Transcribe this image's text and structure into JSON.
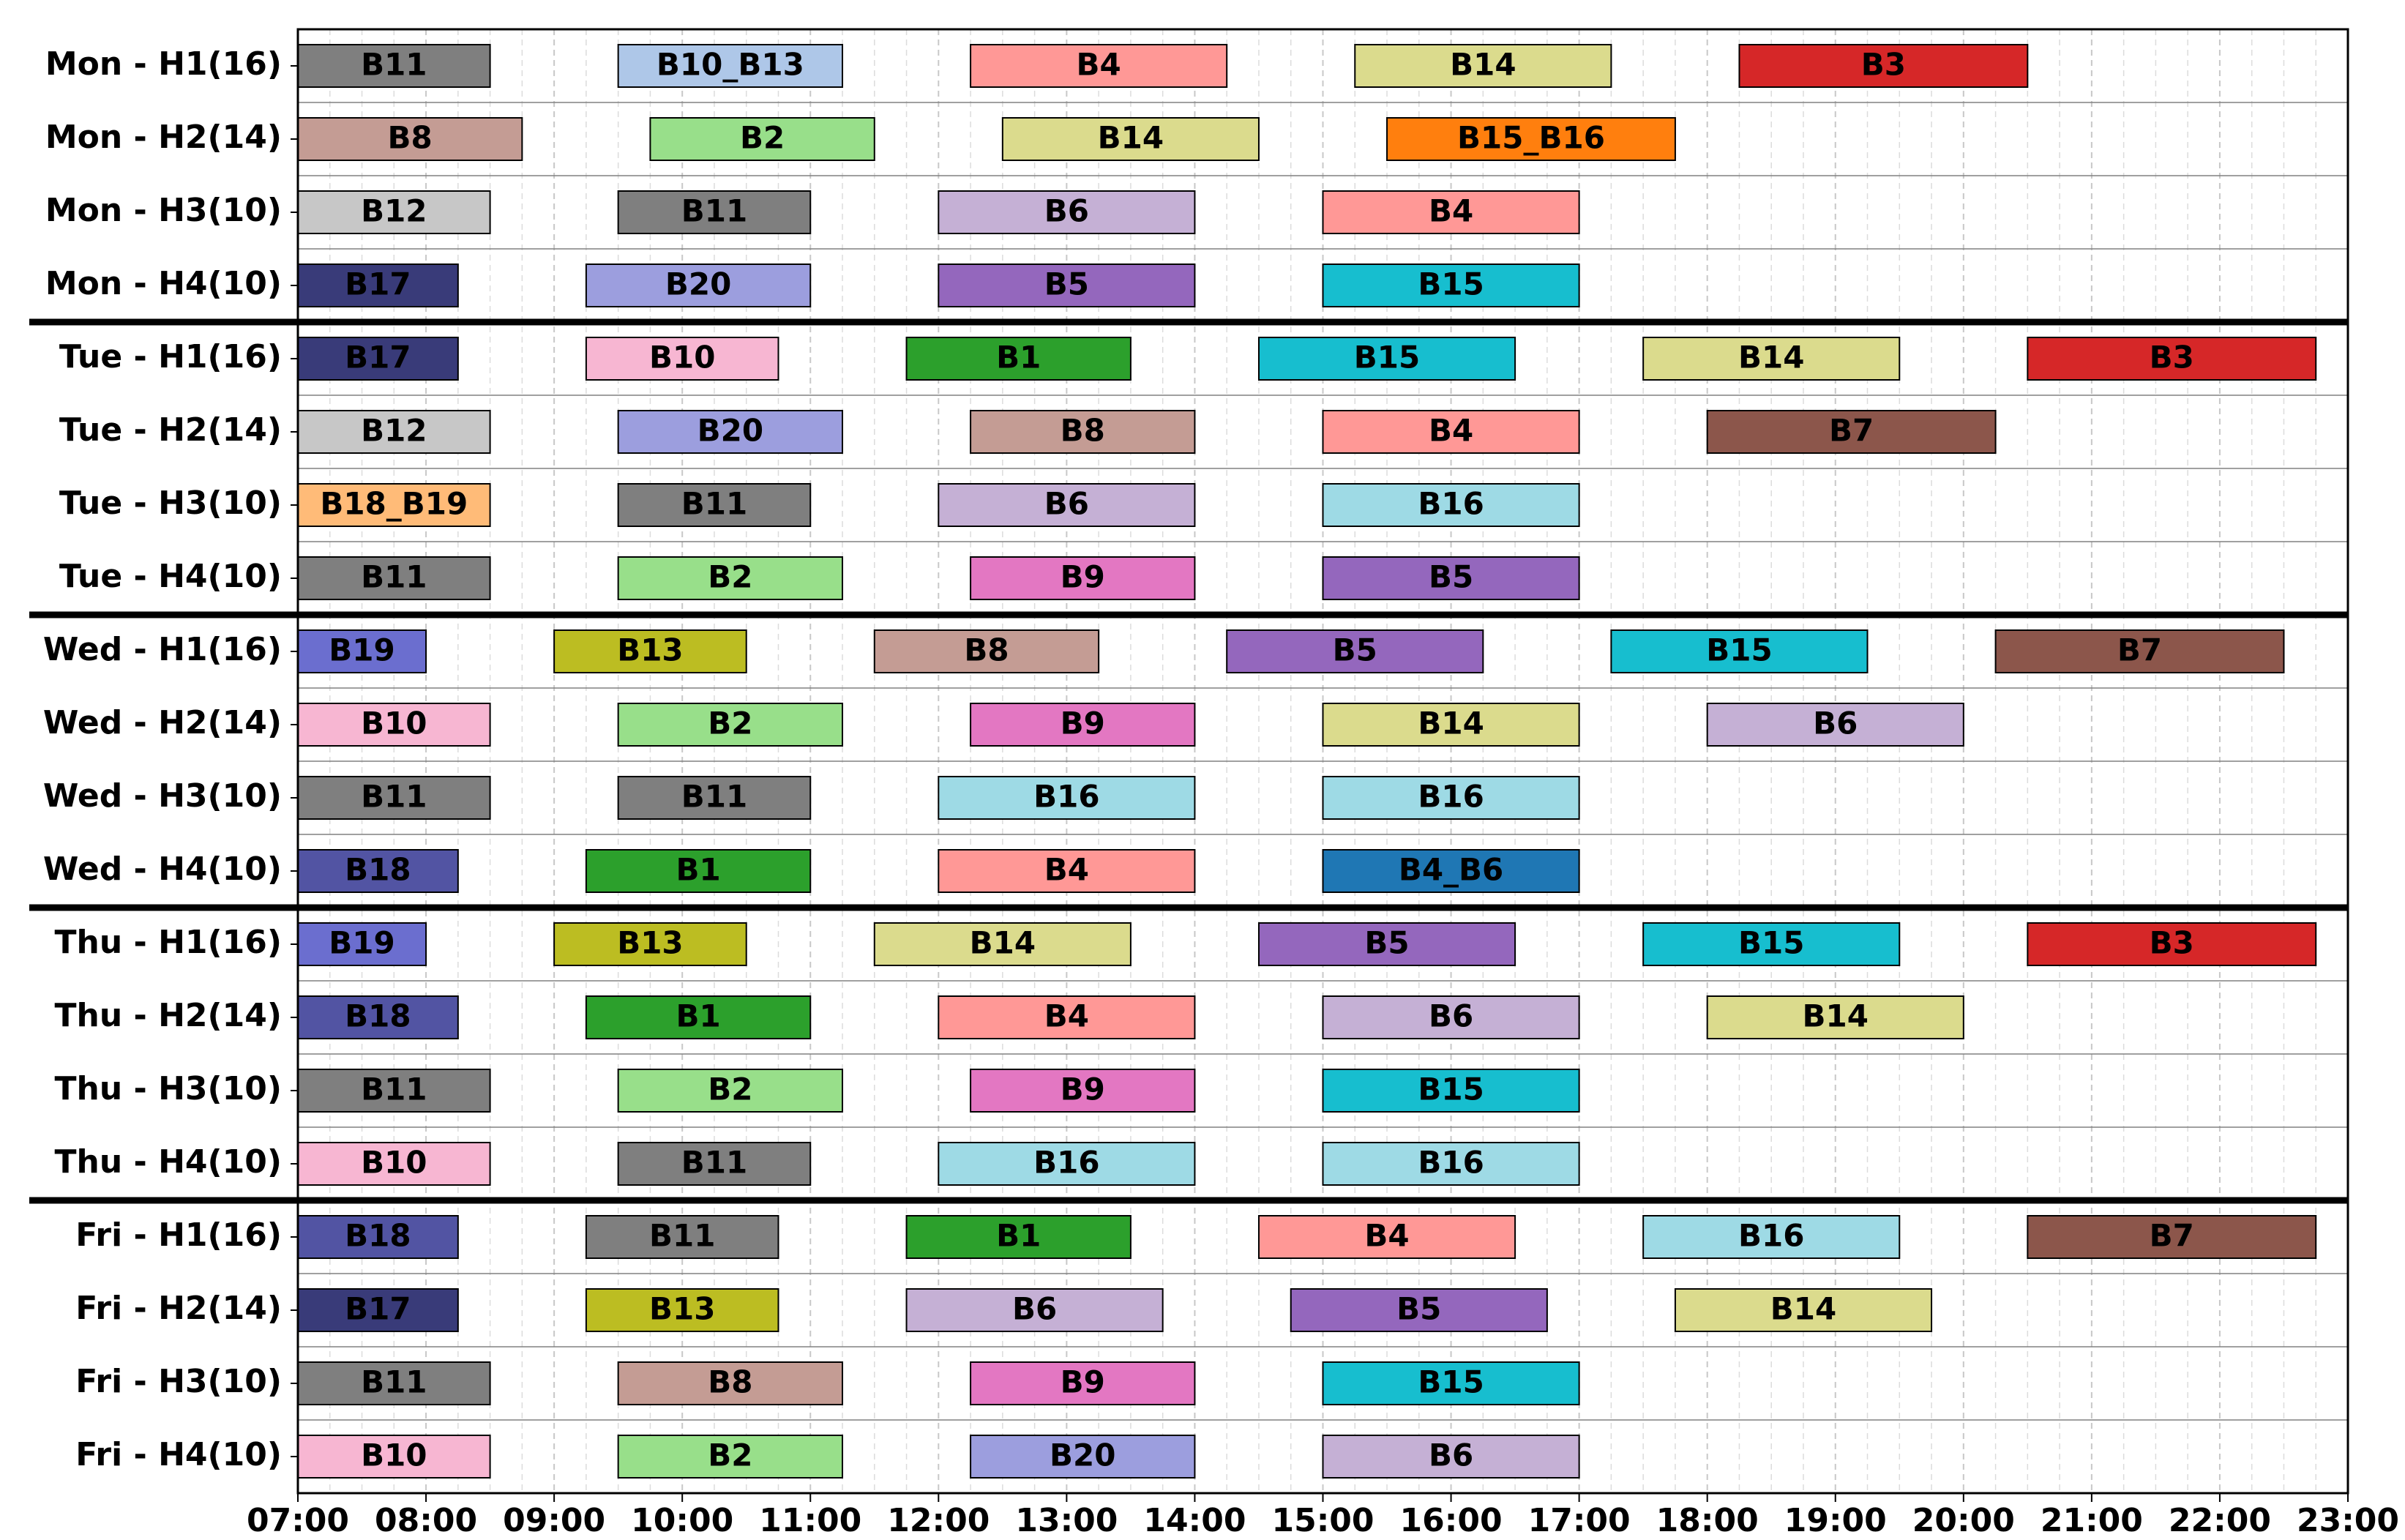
{
  "chart_data": {
    "type": "gantt",
    "title": "",
    "xlabel": "",
    "ylabel": "",
    "x_range": [
      "07:00",
      "23:00"
    ],
    "x_ticks": [
      "07:00",
      "08:00",
      "09:00",
      "10:00",
      "11:00",
      "12:00",
      "13:00",
      "14:00",
      "15:00",
      "16:00",
      "17:00",
      "18:00",
      "19:00",
      "20:00",
      "21:00",
      "22:00",
      "23:00"
    ],
    "grid": "vertical dashed every 0.25 h",
    "rows": [
      {
        "label": "Mon - H1(16)",
        "day": "Mon",
        "bars": [
          {
            "name": "B11",
            "start": "07:00",
            "end": "08:30",
            "color": "#7f7f7f"
          },
          {
            "name": "B10_B13",
            "start": "09:30",
            "end": "11:15",
            "color": "#aec7e8"
          },
          {
            "name": "B4",
            "start": "12:15",
            "end": "14:15",
            "color": "#ff9896"
          },
          {
            "name": "B14",
            "start": "15:15",
            "end": "17:15",
            "color": "#dbdb8d"
          },
          {
            "name": "B3",
            "start": "18:15",
            "end": "20:30",
            "color": "#d62728"
          }
        ]
      },
      {
        "label": "Mon - H2(14)",
        "day": "Mon",
        "bars": [
          {
            "name": "B8",
            "start": "07:00",
            "end": "08:45",
            "color": "#c49c94"
          },
          {
            "name": "B2",
            "start": "09:45",
            "end": "11:30",
            "color": "#98df8a"
          },
          {
            "name": "B14",
            "start": "12:30",
            "end": "14:30",
            "color": "#dbdb8d"
          },
          {
            "name": "B15_B16",
            "start": "15:30",
            "end": "17:45",
            "color": "#ff7f0e"
          }
        ]
      },
      {
        "label": "Mon - H3(10)",
        "day": "Mon",
        "bars": [
          {
            "name": "B12",
            "start": "07:00",
            "end": "08:30",
            "color": "#c7c7c7"
          },
          {
            "name": "B11",
            "start": "09:30",
            "end": "11:00",
            "color": "#7f7f7f"
          },
          {
            "name": "B6",
            "start": "12:00",
            "end": "14:00",
            "color": "#c5b0d5"
          },
          {
            "name": "B4",
            "start": "15:00",
            "end": "17:00",
            "color": "#ff9896"
          }
        ]
      },
      {
        "label": "Mon - H4(10)",
        "day": "Mon",
        "bars": [
          {
            "name": "B17",
            "start": "07:00",
            "end": "08:15",
            "color": "#393b79"
          },
          {
            "name": "B20",
            "start": "09:15",
            "end": "11:00",
            "color": "#9c9ede"
          },
          {
            "name": "B5",
            "start": "12:00",
            "end": "14:00",
            "color": "#9467bd"
          },
          {
            "name": "B15",
            "start": "15:00",
            "end": "17:00",
            "color": "#17becf"
          }
        ]
      },
      {
        "label": "Tue - H1(16)",
        "day": "Tue",
        "bars": [
          {
            "name": "B17",
            "start": "07:00",
            "end": "08:15",
            "color": "#393b79"
          },
          {
            "name": "B10",
            "start": "09:15",
            "end": "10:45",
            "color": "#f7b6d2"
          },
          {
            "name": "B1",
            "start": "11:45",
            "end": "13:30",
            "color": "#2ca02c"
          },
          {
            "name": "B15",
            "start": "14:30",
            "end": "16:30",
            "color": "#17becf"
          },
          {
            "name": "B14",
            "start": "17:30",
            "end": "19:30",
            "color": "#dbdb8d"
          },
          {
            "name": "B3",
            "start": "20:30",
            "end": "22:45",
            "color": "#d62728"
          }
        ]
      },
      {
        "label": "Tue - H2(14)",
        "day": "Tue",
        "bars": [
          {
            "name": "B12",
            "start": "07:00",
            "end": "08:30",
            "color": "#c7c7c7"
          },
          {
            "name": "B20",
            "start": "09:30",
            "end": "11:15",
            "color": "#9c9ede"
          },
          {
            "name": "B8",
            "start": "12:15",
            "end": "14:00",
            "color": "#c49c94"
          },
          {
            "name": "B4",
            "start": "15:00",
            "end": "17:00",
            "color": "#ff9896"
          },
          {
            "name": "B7",
            "start": "18:00",
            "end": "20:15",
            "color": "#8c564b"
          }
        ]
      },
      {
        "label": "Tue - H3(10)",
        "day": "Tue",
        "bars": [
          {
            "name": "B18_B19",
            "start": "07:00",
            "end": "08:30",
            "color": "#ffbb78"
          },
          {
            "name": "B11",
            "start": "09:30",
            "end": "11:00",
            "color": "#7f7f7f"
          },
          {
            "name": "B6",
            "start": "12:00",
            "end": "14:00",
            "color": "#c5b0d5"
          },
          {
            "name": "B16",
            "start": "15:00",
            "end": "17:00",
            "color": "#9edae5"
          }
        ]
      },
      {
        "label": "Tue - H4(10)",
        "day": "Tue",
        "bars": [
          {
            "name": "B11",
            "start": "07:00",
            "end": "08:30",
            "color": "#7f7f7f"
          },
          {
            "name": "B2",
            "start": "09:30",
            "end": "11:15",
            "color": "#98df8a"
          },
          {
            "name": "B9",
            "start": "12:15",
            "end": "14:00",
            "color": "#e377c2"
          },
          {
            "name": "B5",
            "start": "15:00",
            "end": "17:00",
            "color": "#9467bd"
          }
        ]
      },
      {
        "label": "Wed - H1(16)",
        "day": "Wed",
        "bars": [
          {
            "name": "B19",
            "start": "07:00",
            "end": "08:00",
            "color": "#6b6ecf"
          },
          {
            "name": "B13",
            "start": "09:00",
            "end": "10:30",
            "color": "#bcbd22"
          },
          {
            "name": "B8",
            "start": "11:30",
            "end": "13:15",
            "color": "#c49c94"
          },
          {
            "name": "B5",
            "start": "14:15",
            "end": "16:15",
            "color": "#9467bd"
          },
          {
            "name": "B15",
            "start": "17:15",
            "end": "19:15",
            "color": "#17becf"
          },
          {
            "name": "B7",
            "start": "20:15",
            "end": "22:30",
            "color": "#8c564b"
          }
        ]
      },
      {
        "label": "Wed - H2(14)",
        "day": "Wed",
        "bars": [
          {
            "name": "B10",
            "start": "07:00",
            "end": "08:30",
            "color": "#f7b6d2"
          },
          {
            "name": "B2",
            "start": "09:30",
            "end": "11:15",
            "color": "#98df8a"
          },
          {
            "name": "B9",
            "start": "12:15",
            "end": "14:00",
            "color": "#e377c2"
          },
          {
            "name": "B14",
            "start": "15:00",
            "end": "17:00",
            "color": "#dbdb8d"
          },
          {
            "name": "B6",
            "start": "18:00",
            "end": "20:00",
            "color": "#c5b0d5"
          }
        ]
      },
      {
        "label": "Wed - H3(10)",
        "day": "Wed",
        "bars": [
          {
            "name": "B11",
            "start": "07:00",
            "end": "08:30",
            "color": "#7f7f7f"
          },
          {
            "name": "B11",
            "start": "09:30",
            "end": "11:00",
            "color": "#7f7f7f"
          },
          {
            "name": "B16",
            "start": "12:00",
            "end": "14:00",
            "color": "#9edae5"
          },
          {
            "name": "B16",
            "start": "15:00",
            "end": "17:00",
            "color": "#9edae5"
          }
        ]
      },
      {
        "label": "Wed - H4(10)",
        "day": "Wed",
        "bars": [
          {
            "name": "B18",
            "start": "07:00",
            "end": "08:15",
            "color": "#5254a3"
          },
          {
            "name": "B1",
            "start": "09:15",
            "end": "11:00",
            "color": "#2ca02c"
          },
          {
            "name": "B4",
            "start": "12:00",
            "end": "14:00",
            "color": "#ff9896"
          },
          {
            "name": "B4_B6",
            "start": "15:00",
            "end": "17:00",
            "color": "#1f77b4"
          }
        ]
      },
      {
        "label": "Thu - H1(16)",
        "day": "Thu",
        "bars": [
          {
            "name": "B19",
            "start": "07:00",
            "end": "08:00",
            "color": "#6b6ecf"
          },
          {
            "name": "B13",
            "start": "09:00",
            "end": "10:30",
            "color": "#bcbd22"
          },
          {
            "name": "B14",
            "start": "11:30",
            "end": "13:30",
            "color": "#dbdb8d"
          },
          {
            "name": "B5",
            "start": "14:30",
            "end": "16:30",
            "color": "#9467bd"
          },
          {
            "name": "B15",
            "start": "17:30",
            "end": "19:30",
            "color": "#17becf"
          },
          {
            "name": "B3",
            "start": "20:30",
            "end": "22:45",
            "color": "#d62728"
          }
        ]
      },
      {
        "label": "Thu - H2(14)",
        "day": "Thu",
        "bars": [
          {
            "name": "B18",
            "start": "07:00",
            "end": "08:15",
            "color": "#5254a3"
          },
          {
            "name": "B1",
            "start": "09:15",
            "end": "11:00",
            "color": "#2ca02c"
          },
          {
            "name": "B4",
            "start": "12:00",
            "end": "14:00",
            "color": "#ff9896"
          },
          {
            "name": "B6",
            "start": "15:00",
            "end": "17:00",
            "color": "#c5b0d5"
          },
          {
            "name": "B14",
            "start": "18:00",
            "end": "20:00",
            "color": "#dbdb8d"
          }
        ]
      },
      {
        "label": "Thu - H3(10)",
        "day": "Thu",
        "bars": [
          {
            "name": "B11",
            "start": "07:00",
            "end": "08:30",
            "color": "#7f7f7f"
          },
          {
            "name": "B2",
            "start": "09:30",
            "end": "11:15",
            "color": "#98df8a"
          },
          {
            "name": "B9",
            "start": "12:15",
            "end": "14:00",
            "color": "#e377c2"
          },
          {
            "name": "B15",
            "start": "15:00",
            "end": "17:00",
            "color": "#17becf"
          }
        ]
      },
      {
        "label": "Thu - H4(10)",
        "day": "Thu",
        "bars": [
          {
            "name": "B10",
            "start": "07:00",
            "end": "08:30",
            "color": "#f7b6d2"
          },
          {
            "name": "B11",
            "start": "09:30",
            "end": "11:00",
            "color": "#7f7f7f"
          },
          {
            "name": "B16",
            "start": "12:00",
            "end": "14:00",
            "color": "#9edae5"
          },
          {
            "name": "B16",
            "start": "15:00",
            "end": "17:00",
            "color": "#9edae5"
          }
        ]
      },
      {
        "label": "Fri - H1(16)",
        "day": "Fri",
        "bars": [
          {
            "name": "B18",
            "start": "07:00",
            "end": "08:15",
            "color": "#5254a3"
          },
          {
            "name": "B11",
            "start": "09:15",
            "end": "10:45",
            "color": "#7f7f7f"
          },
          {
            "name": "B1",
            "start": "11:45",
            "end": "13:30",
            "color": "#2ca02c"
          },
          {
            "name": "B4",
            "start": "14:30",
            "end": "16:30",
            "color": "#ff9896"
          },
          {
            "name": "B16",
            "start": "17:30",
            "end": "19:30",
            "color": "#9edae5"
          },
          {
            "name": "B7",
            "start": "20:30",
            "end": "22:45",
            "color": "#8c564b"
          }
        ]
      },
      {
        "label": "Fri - H2(14)",
        "day": "Fri",
        "bars": [
          {
            "name": "B17",
            "start": "07:00",
            "end": "08:15",
            "color": "#393b79"
          },
          {
            "name": "B13",
            "start": "09:15",
            "end": "10:45",
            "color": "#bcbd22"
          },
          {
            "name": "B6",
            "start": "11:45",
            "end": "13:45",
            "color": "#c5b0d5"
          },
          {
            "name": "B5",
            "start": "14:45",
            "end": "16:45",
            "color": "#9467bd"
          },
          {
            "name": "B14",
            "start": "17:45",
            "end": "19:45",
            "color": "#dbdb8d"
          }
        ]
      },
      {
        "label": "Fri - H3(10)",
        "day": "Fri",
        "bars": [
          {
            "name": "B11",
            "start": "07:00",
            "end": "08:30",
            "color": "#7f7f7f"
          },
          {
            "name": "B8",
            "start": "09:30",
            "end": "11:15",
            "color": "#c49c94"
          },
          {
            "name": "B9",
            "start": "12:15",
            "end": "14:00",
            "color": "#e377c2"
          },
          {
            "name": "B15",
            "start": "15:00",
            "end": "17:00",
            "color": "#17becf"
          }
        ]
      },
      {
        "label": "Fri - H4(10)",
        "day": "Fri",
        "bars": [
          {
            "name": "B10",
            "start": "07:00",
            "end": "08:30",
            "color": "#f7b6d2"
          },
          {
            "name": "B2",
            "start": "09:30",
            "end": "11:15",
            "color": "#98df8a"
          },
          {
            "name": "B20",
            "start": "12:15",
            "end": "14:00",
            "color": "#9c9ede"
          },
          {
            "name": "B6",
            "start": "15:00",
            "end": "17:00",
            "color": "#c5b0d5"
          }
        ]
      }
    ]
  }
}
